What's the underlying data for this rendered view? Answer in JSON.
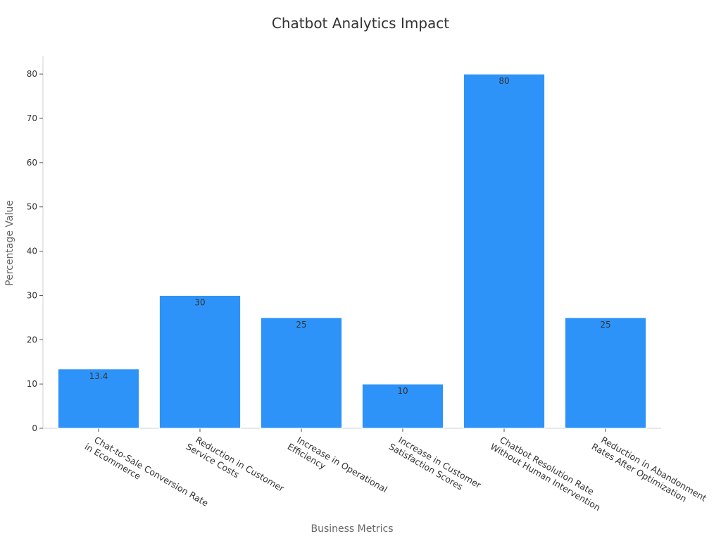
{
  "chart_data": {
    "type": "bar",
    "title": "Chatbot Analytics Impact",
    "xlabel": "Business Metrics",
    "ylabel": "Percentage Value",
    "categories": [
      [
        "Chat-to-Sale Conversion Rate",
        "in Ecommerce"
      ],
      [
        "Reduction in Customer",
        "Service Costs"
      ],
      [
        "Increase in Operational",
        "Efficiency"
      ],
      [
        "Increase in Customer",
        "Satisfaction Scores"
      ],
      [
        "Chatbot Resolution Rate",
        "Without Human Intervention"
      ],
      [
        "Reduction in Abandonment",
        "Rates After Optimization"
      ]
    ],
    "values": [
      13.4,
      30,
      25,
      10,
      80,
      25
    ],
    "data_labels": [
      "13.4",
      "30",
      "25",
      "10",
      "80",
      "25"
    ],
    "ylim": [
      0,
      84
    ],
    "yticks": [
      0,
      10,
      20,
      30,
      40,
      50,
      60,
      70,
      80
    ],
    "bar_color": "#2e93f9",
    "grid": false,
    "legend": "none"
  }
}
